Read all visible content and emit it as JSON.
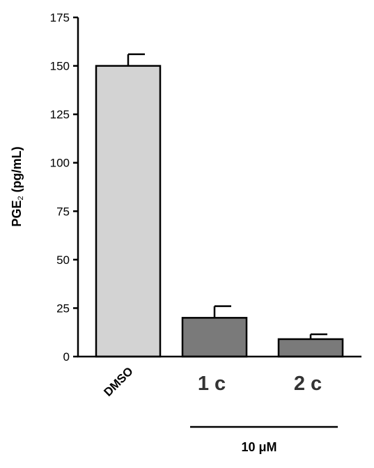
{
  "chart_data": {
    "type": "bar",
    "title": "",
    "ylabel_main": "PGE",
    "ylabel_sub": "2",
    "ylabel_unit": "(pg/mL)",
    "ylim": [
      0,
      175
    ],
    "yticks": [
      "0",
      "25",
      "50",
      "75",
      "100",
      "125",
      "150",
      "175"
    ],
    "categories": [
      "DMSO",
      "1 c",
      "2 c"
    ],
    "values": [
      150,
      20,
      9
    ],
    "errors": [
      6,
      6,
      2.5
    ],
    "bar_colors": [
      "#d3d3d3",
      "#7a7a7a",
      "#7a7a7a"
    ],
    "group_label": "10 μM",
    "grid": false,
    "legend": "none"
  }
}
